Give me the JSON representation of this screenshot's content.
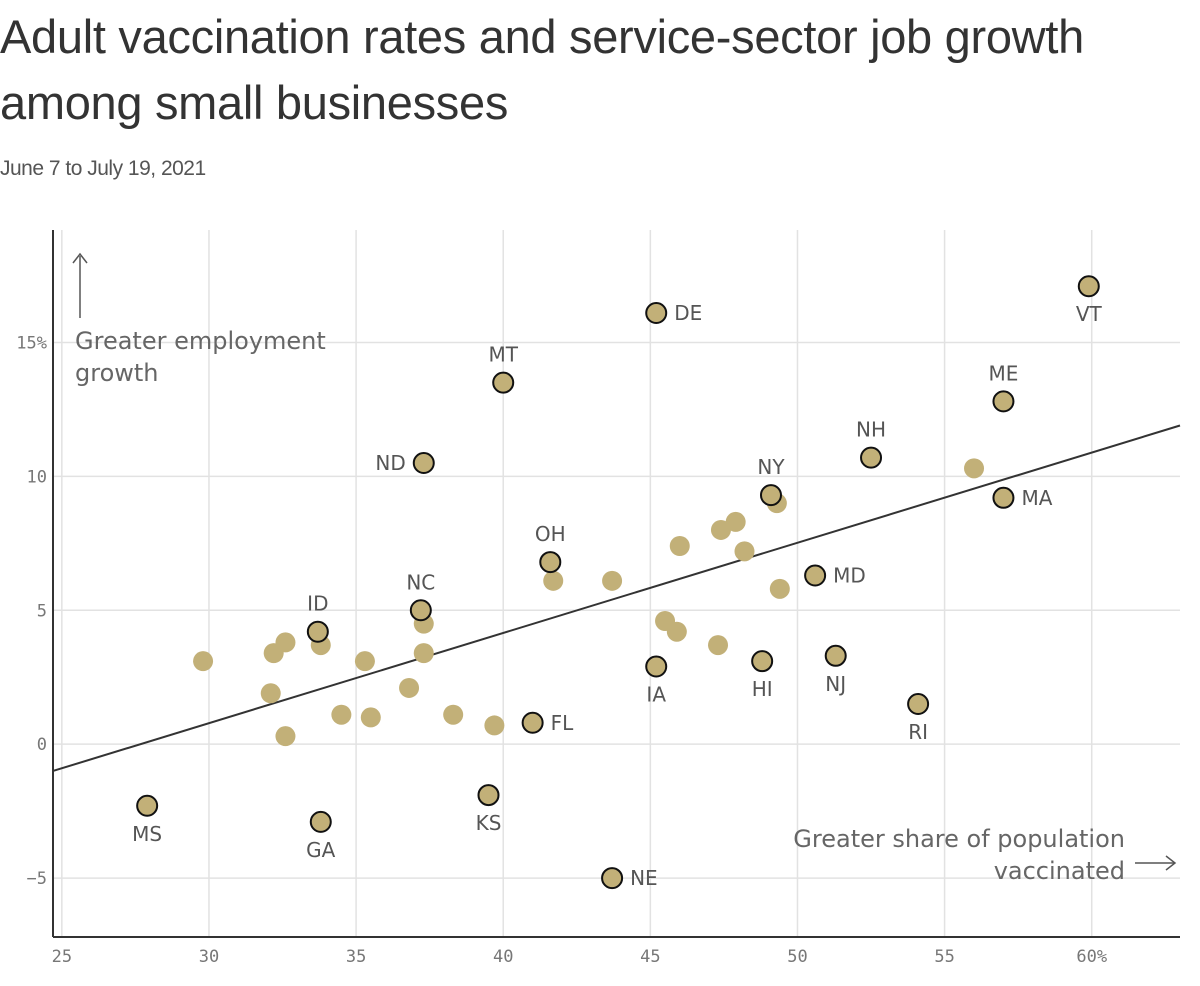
{
  "title": "Adult vaccination rates and service-sector job growth among small businesses",
  "subtitle": "June 7 to July 19, 2021",
  "colors": {
    "point": "#c2b078",
    "grid": "#e2e2e2",
    "axis": "#333333",
    "trend": "#333333",
    "text": "#555555"
  },
  "chart_data": {
    "type": "scatter",
    "xlim": [
      24.7,
      63
    ],
    "ylim": [
      -7.2,
      19.2
    ],
    "x_ticks": [
      {
        "value": 25,
        "label": "25"
      },
      {
        "value": 30,
        "label": "30"
      },
      {
        "value": 35,
        "label": "35"
      },
      {
        "value": 40,
        "label": "40"
      },
      {
        "value": 45,
        "label": "45"
      },
      {
        "value": 50,
        "label": "50"
      },
      {
        "value": 55,
        "label": "55"
      },
      {
        "value": 60,
        "label": "60%"
      }
    ],
    "y_ticks": [
      {
        "value": -5,
        "label": "−5"
      },
      {
        "value": 0,
        "label": "0"
      },
      {
        "value": 5,
        "label": "5"
      },
      {
        "value": 10,
        "label": "10"
      },
      {
        "value": 15,
        "label": "15%"
      }
    ],
    "grid": true,
    "trendline": {
      "x1": 24.7,
      "y1": -1.0,
      "x2": 63,
      "y2": 11.9
    },
    "labeled_points": [
      {
        "label": "VT",
        "x": 59.9,
        "y": 17.1,
        "label_pos": "below"
      },
      {
        "label": "DE",
        "x": 45.2,
        "y": 16.1,
        "label_pos": "right"
      },
      {
        "label": "MT",
        "x": 40.0,
        "y": 13.5,
        "label_pos": "above"
      },
      {
        "label": "ME",
        "x": 57.0,
        "y": 12.8,
        "label_pos": "above"
      },
      {
        "label": "NH",
        "x": 52.5,
        "y": 10.7,
        "label_pos": "above"
      },
      {
        "label": "ND",
        "x": 37.3,
        "y": 10.5,
        "label_pos": "left"
      },
      {
        "label": "NY",
        "x": 49.1,
        "y": 9.3,
        "label_pos": "above"
      },
      {
        "label": "MA",
        "x": 57.0,
        "y": 9.2,
        "label_pos": "right"
      },
      {
        "label": "OH",
        "x": 41.6,
        "y": 6.8,
        "label_pos": "above"
      },
      {
        "label": "MD",
        "x": 50.6,
        "y": 6.3,
        "label_pos": "right"
      },
      {
        "label": "NC",
        "x": 37.2,
        "y": 5.0,
        "label_pos": "above"
      },
      {
        "label": "ID",
        "x": 33.7,
        "y": 4.2,
        "label_pos": "above"
      },
      {
        "label": "NJ",
        "x": 51.3,
        "y": 3.3,
        "label_pos": "below"
      },
      {
        "label": "HI",
        "x": 48.8,
        "y": 3.1,
        "label_pos": "below"
      },
      {
        "label": "IA",
        "x": 45.2,
        "y": 2.9,
        "label_pos": "below"
      },
      {
        "label": "RI",
        "x": 54.1,
        "y": 1.5,
        "label_pos": "below"
      },
      {
        "label": "FL",
        "x": 41.0,
        "y": 0.8,
        "label_pos": "right"
      },
      {
        "label": "KS",
        "x": 39.5,
        "y": -1.9,
        "label_pos": "below"
      },
      {
        "label": "MS",
        "x": 27.9,
        "y": -2.3,
        "label_pos": "below"
      },
      {
        "label": "GA",
        "x": 33.8,
        "y": -2.9,
        "label_pos": "below"
      },
      {
        "label": "NE",
        "x": 43.7,
        "y": -5.0,
        "label_pos": "right"
      }
    ],
    "unlabeled_points": [
      {
        "x": 29.8,
        "y": 3.1
      },
      {
        "x": 32.6,
        "y": 3.8
      },
      {
        "x": 32.2,
        "y": 3.4
      },
      {
        "x": 33.8,
        "y": 3.7
      },
      {
        "x": 32.1,
        "y": 1.9
      },
      {
        "x": 32.6,
        "y": 0.3
      },
      {
        "x": 34.5,
        "y": 1.1
      },
      {
        "x": 35.3,
        "y": 3.1
      },
      {
        "x": 35.5,
        "y": 1.0
      },
      {
        "x": 36.8,
        "y": 2.1
      },
      {
        "x": 37.3,
        "y": 3.4
      },
      {
        "x": 37.3,
        "y": 4.5
      },
      {
        "x": 38.3,
        "y": 1.1
      },
      {
        "x": 39.7,
        "y": 0.7
      },
      {
        "x": 41.7,
        "y": 6.1
      },
      {
        "x": 43.7,
        "y": 6.1
      },
      {
        "x": 45.5,
        "y": 4.6
      },
      {
        "x": 45.9,
        "y": 4.2
      },
      {
        "x": 46.0,
        "y": 7.4
      },
      {
        "x": 47.3,
        "y": 3.7
      },
      {
        "x": 47.4,
        "y": 8.0
      },
      {
        "x": 47.9,
        "y": 8.3
      },
      {
        "x": 48.2,
        "y": 7.2
      },
      {
        "x": 49.3,
        "y": 9.0
      },
      {
        "x": 49.4,
        "y": 5.8
      },
      {
        "x": 56.0,
        "y": 10.3
      }
    ],
    "annotations": {
      "y_direction": [
        "Greater employment",
        "growth"
      ],
      "x_direction": [
        "Greater share of population",
        "vaccinated"
      ]
    }
  }
}
